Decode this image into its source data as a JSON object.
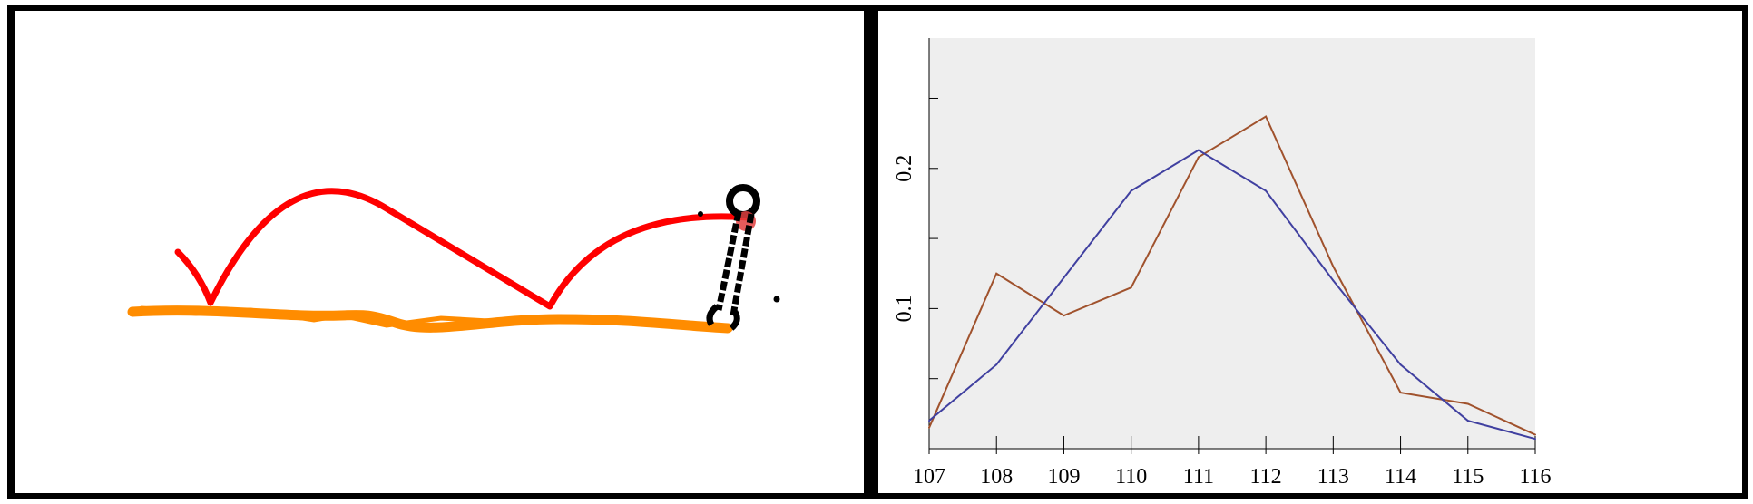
{
  "left_panel": {
    "sketch_colors": {
      "ground_line": "#ff8c00",
      "arc_path": "#ff0000",
      "wrench_icon": "#000000"
    }
  },
  "chart_data": {
    "type": "line",
    "x": [
      107,
      108,
      109,
      110,
      111,
      112,
      113,
      114,
      115,
      116
    ],
    "series": [
      {
        "color": "#a0522d",
        "values": [
          0.015,
          0.125,
          0.095,
          0.115,
          0.208,
          0.237,
          0.13,
          0.04,
          0.032,
          0.01
        ]
      },
      {
        "color": "#4040a0",
        "values": [
          0.02,
          0.06,
          0.122,
          0.184,
          0.213,
          0.184,
          0.12,
          0.06,
          0.02,
          0.007
        ]
      }
    ],
    "xlim": [
      107,
      116
    ],
    "ylim": [
      0,
      0.293
    ],
    "x_ticks": [
      "107",
      "108",
      "109",
      "110",
      "111",
      "112",
      "113",
      "114",
      "115",
      "116"
    ],
    "y_ticks": [
      0.05,
      0.1,
      0.15,
      0.2,
      0.25
    ],
    "y_tick_labels": [
      "",
      "0.1",
      "",
      "0.2",
      ""
    ],
    "plot_background": "#eeeeee",
    "grid": false,
    "legend": "none"
  }
}
